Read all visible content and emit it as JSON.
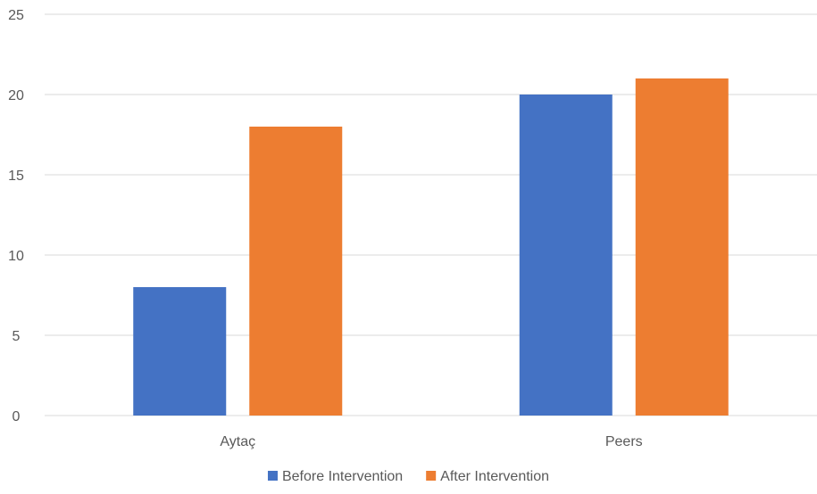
{
  "chart_data": {
    "type": "bar",
    "categories": [
      "Aytaç",
      "Peers"
    ],
    "series": [
      {
        "name": "Before Intervention",
        "values": [
          8,
          20
        ],
        "color": "#4472C4"
      },
      {
        "name": "After Intervention",
        "values": [
          18,
          21
        ],
        "color": "#ED7D31"
      }
    ],
    "ylim": [
      0,
      25
    ],
    "yticks": [
      0,
      5,
      10,
      15,
      20,
      25
    ],
    "grid": true,
    "gridline_color": "#D9D9D9",
    "legend_position": "bottom-center",
    "title": "",
    "xlabel": "",
    "ylabel": ""
  }
}
